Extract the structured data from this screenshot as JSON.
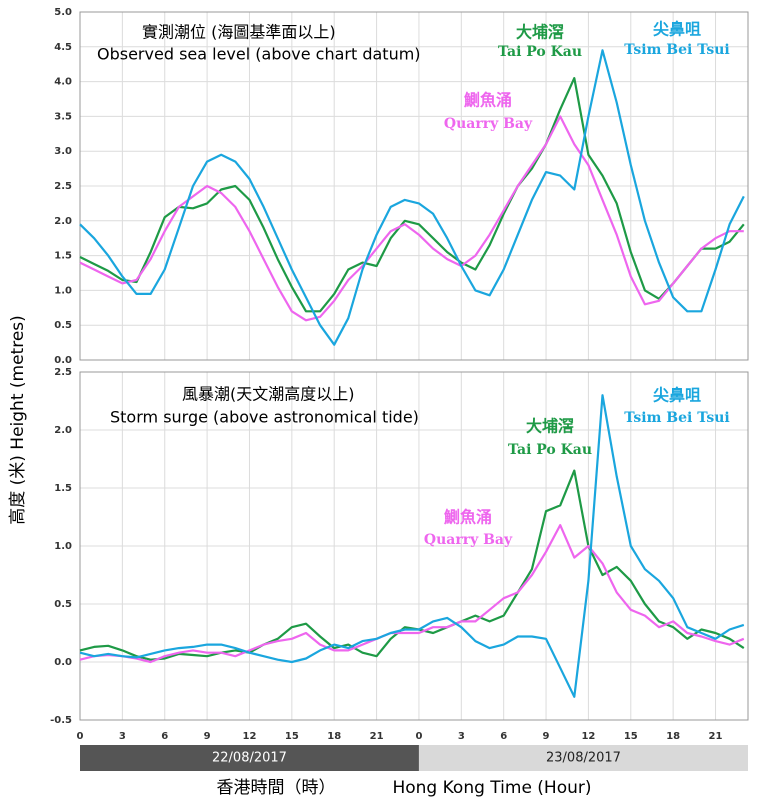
{
  "time_axis": {
    "xlim": [
      0,
      47.3
    ],
    "x": [
      0,
      1,
      2,
      3,
      4,
      5,
      6,
      7,
      8,
      9,
      10,
      11,
      12,
      13,
      14,
      15,
      16,
      17,
      18,
      19,
      20,
      21,
      22,
      23,
      24,
      25,
      26,
      27,
      28,
      29,
      30,
      31,
      32,
      33,
      34,
      35,
      36,
      37,
      38,
      39,
      40,
      41,
      42,
      43,
      44,
      45,
      46,
      47
    ],
    "xticks": [
      0,
      3,
      6,
      9,
      12,
      15,
      18,
      21,
      {
        "value": 24,
        "label": "0"
      },
      {
        "value": 27,
        "label": "3"
      },
      {
        "value": 30,
        "label": "6"
      },
      {
        "value": 33,
        "label": "9"
      },
      {
        "value": 36,
        "label": "12"
      },
      {
        "value": 39,
        "label": "15"
      },
      {
        "value": 42,
        "label": "18"
      },
      {
        "value": 45,
        "label": "21"
      }
    ],
    "dates": [
      "22/08/2017",
      "23/08/2017"
    ],
    "label_zh": "香港時間（時）",
    "label_en": "Hong Kong Time (Hour)"
  },
  "y_label": "高度 (米) Height (metres)",
  "chart_data": [
    {
      "type": "line",
      "title": "實測潮位 (海圖基準面以上)",
      "subtitle": "Observed sea level (above chart datum)",
      "ylim": [
        0,
        5
      ],
      "yticks": [
        {
          "value": 0,
          "label": "0.0"
        },
        0.5,
        {
          "value": 1,
          "label": "1.0"
        },
        1.5,
        {
          "value": 2,
          "label": "2.0"
        },
        2.5,
        {
          "value": 3,
          "label": "3.0"
        },
        3.5,
        {
          "value": 4,
          "label": "4.0"
        },
        4.5,
        {
          "value": 5,
          "label": "5.0"
        }
      ],
      "grid": true,
      "series": [
        {
          "name": "大埔滘",
          "name_en": "Tai Po Kau",
          "color": "#1e9a46",
          "values": [
            1.48,
            1.38,
            1.28,
            1.15,
            1.12,
            1.55,
            2.05,
            2.2,
            2.18,
            2.25,
            2.45,
            2.5,
            2.3,
            1.9,
            1.45,
            1.05,
            0.7,
            0.7,
            0.95,
            1.3,
            1.4,
            1.35,
            1.75,
            2.0,
            1.95,
            1.75,
            1.55,
            1.4,
            1.3,
            1.65,
            2.1,
            2.5,
            2.75,
            3.1,
            3.6,
            4.05,
            2.95,
            2.65,
            2.25,
            1.55,
            1.0,
            0.88,
            1.1,
            1.35,
            1.6,
            1.6,
            1.7,
            1.95
          ]
        },
        {
          "name": "鰂魚涌",
          "name_en": "Quarry Bay",
          "color": "#ee66ee",
          "values": [
            1.4,
            1.3,
            1.2,
            1.1,
            1.15,
            1.45,
            1.85,
            2.2,
            2.35,
            2.5,
            2.4,
            2.2,
            1.85,
            1.45,
            1.05,
            0.7,
            0.57,
            0.62,
            0.85,
            1.15,
            1.35,
            1.6,
            1.85,
            1.95,
            1.8,
            1.6,
            1.45,
            1.35,
            1.5,
            1.8,
            2.15,
            2.5,
            2.8,
            3.1,
            3.5,
            3.1,
            2.8,
            2.3,
            1.8,
            1.2,
            0.8,
            0.85,
            1.1,
            1.35,
            1.6,
            1.75,
            1.85,
            1.85
          ]
        },
        {
          "name": "尖鼻咀",
          "name_en": "Tsim Bei Tsui",
          "color": "#1aa6de",
          "values": [
            1.95,
            1.75,
            1.5,
            1.2,
            0.95,
            0.95,
            1.3,
            1.9,
            2.5,
            2.85,
            2.95,
            2.85,
            2.6,
            2.2,
            1.75,
            1.3,
            0.9,
            0.5,
            0.22,
            0.6,
            1.3,
            1.8,
            2.2,
            2.3,
            2.25,
            2.1,
            1.75,
            1.35,
            1.0,
            0.93,
            1.3,
            1.8,
            2.3,
            2.7,
            2.65,
            2.45,
            3.5,
            4.45,
            3.7,
            2.8,
            2.0,
            1.4,
            0.9,
            0.7,
            0.7,
            1.3,
            1.95,
            2.35
          ]
        }
      ]
    },
    {
      "type": "line",
      "title": "風暴潮(天文潮高度以上)",
      "subtitle": "Storm surge (above astronomical tide)",
      "ylim": [
        -0.5,
        2.5
      ],
      "yticks": [
        -0.5,
        {
          "value": 0,
          "label": "0.0"
        },
        0.5,
        {
          "value": 1,
          "label": "1.0"
        },
        1.5,
        {
          "value": 2,
          "label": "2.0"
        },
        2.5
      ],
      "grid": true,
      "series": [
        {
          "name": "大埔滘",
          "name_en": "Tai Po Kau",
          "color": "#1e9a46",
          "values": [
            0.1,
            0.13,
            0.14,
            0.1,
            0.05,
            0.02,
            0.03,
            0.07,
            0.06,
            0.05,
            0.08,
            0.1,
            0.08,
            0.15,
            0.2,
            0.3,
            0.33,
            0.22,
            0.12,
            0.15,
            0.08,
            0.05,
            0.2,
            0.3,
            0.28,
            0.25,
            0.3,
            0.35,
            0.4,
            0.35,
            0.4,
            0.6,
            0.8,
            1.3,
            1.35,
            1.65,
            1.0,
            0.75,
            0.82,
            0.7,
            0.5,
            0.35,
            0.3,
            0.2,
            0.28,
            0.25,
            0.2,
            0.12
          ]
        },
        {
          "name": "鰂魚涌",
          "name_en": "Quarry Bay",
          "color": "#ee66ee",
          "values": [
            0.02,
            0.05,
            0.06,
            0.05,
            0.03,
            0.0,
            0.05,
            0.08,
            0.1,
            0.08,
            0.08,
            0.05,
            0.1,
            0.15,
            0.18,
            0.2,
            0.25,
            0.15,
            0.1,
            0.1,
            0.15,
            0.2,
            0.25,
            0.25,
            0.25,
            0.3,
            0.3,
            0.35,
            0.35,
            0.45,
            0.55,
            0.6,
            0.75,
            0.95,
            1.18,
            0.9,
            1.0,
            0.85,
            0.6,
            0.45,
            0.4,
            0.3,
            0.35,
            0.25,
            0.22,
            0.18,
            0.15,
            0.2
          ]
        },
        {
          "name": "尖鼻咀",
          "name_en": "Tsim Bei Tsui",
          "color": "#1aa6de",
          "values": [
            0.08,
            0.05,
            0.07,
            0.05,
            0.04,
            0.07,
            0.1,
            0.12,
            0.13,
            0.15,
            0.15,
            0.12,
            0.08,
            0.05,
            0.02,
            0.0,
            0.03,
            0.1,
            0.15,
            0.12,
            0.18,
            0.2,
            0.25,
            0.28,
            0.28,
            0.35,
            0.38,
            0.3,
            0.18,
            0.12,
            0.15,
            0.22,
            0.22,
            0.2,
            -0.05,
            -0.3,
            0.7,
            2.3,
            1.6,
            1.0,
            0.8,
            0.7,
            0.55,
            0.3,
            0.25,
            0.2,
            0.28,
            0.32
          ]
        }
      ]
    }
  ]
}
